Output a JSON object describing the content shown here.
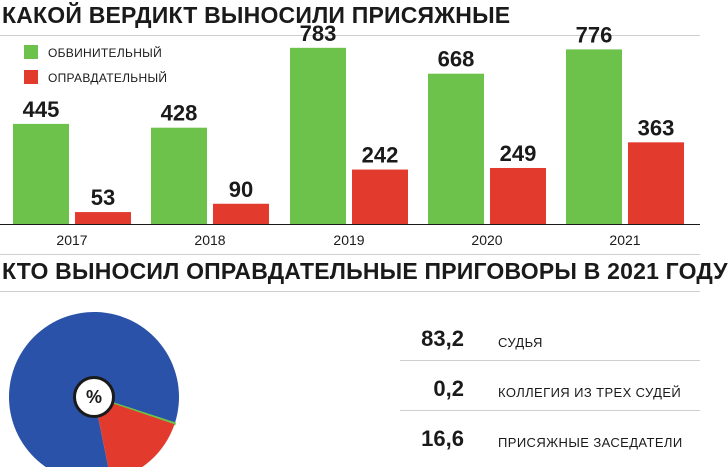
{
  "titles": {
    "verdicts": "КАКОЙ ВЕРДИКТ ВЫНОСИЛИ ПРИСЯЖНЫЕ",
    "acquittals_by": "КТО ВЫНОСИЛ ОПРАВДАТЕЛЬНЫЕ ПРИГОВОРЫ В 2021 ГОДУ"
  },
  "chart_data": [
    {
      "type": "bar",
      "title": "КАКОЙ ВЕРДИКТ ВЫНОСИЛИ ПРИСЯЖНЫЕ",
      "categories": [
        "2017",
        "2018",
        "2019",
        "2020",
        "2021"
      ],
      "series": [
        {
          "name": "ОБВИНИТЕЛЬНЫЙ",
          "color": "#6cc24a",
          "values": [
            445,
            428,
            783,
            668,
            776
          ]
        },
        {
          "name": "ОПРАВДАТЕЛЬНЫЙ",
          "color": "#e23b2e",
          "values": [
            53,
            90,
            242,
            249,
            363
          ]
        }
      ],
      "ylim": [
        0,
        800
      ],
      "grid": false,
      "legend_position": "top-left",
      "data_labels": true
    },
    {
      "type": "pie",
      "title": "КТО ВЫНОСИЛ ОПРАВДАТЕЛЬНЫЕ ПРИГОВОРЫ В 2021 ГОДУ",
      "center_label": "%",
      "slices": [
        {
          "label": "СУДЬЯ",
          "value": 83.2,
          "display": "83,2",
          "color": "#2a52a8"
        },
        {
          "label": "КОЛЛЕГИЯ ИЗ ТРЕХ СУДЕЙ",
          "value": 0.2,
          "display": "0,2",
          "color": "#6cc24a"
        },
        {
          "label": "ПРИСЯЖНЫЕ ЗАСЕДАТЕЛИ",
          "value": 16.6,
          "display": "16,6",
          "color": "#e23b2e"
        }
      ]
    }
  ]
}
